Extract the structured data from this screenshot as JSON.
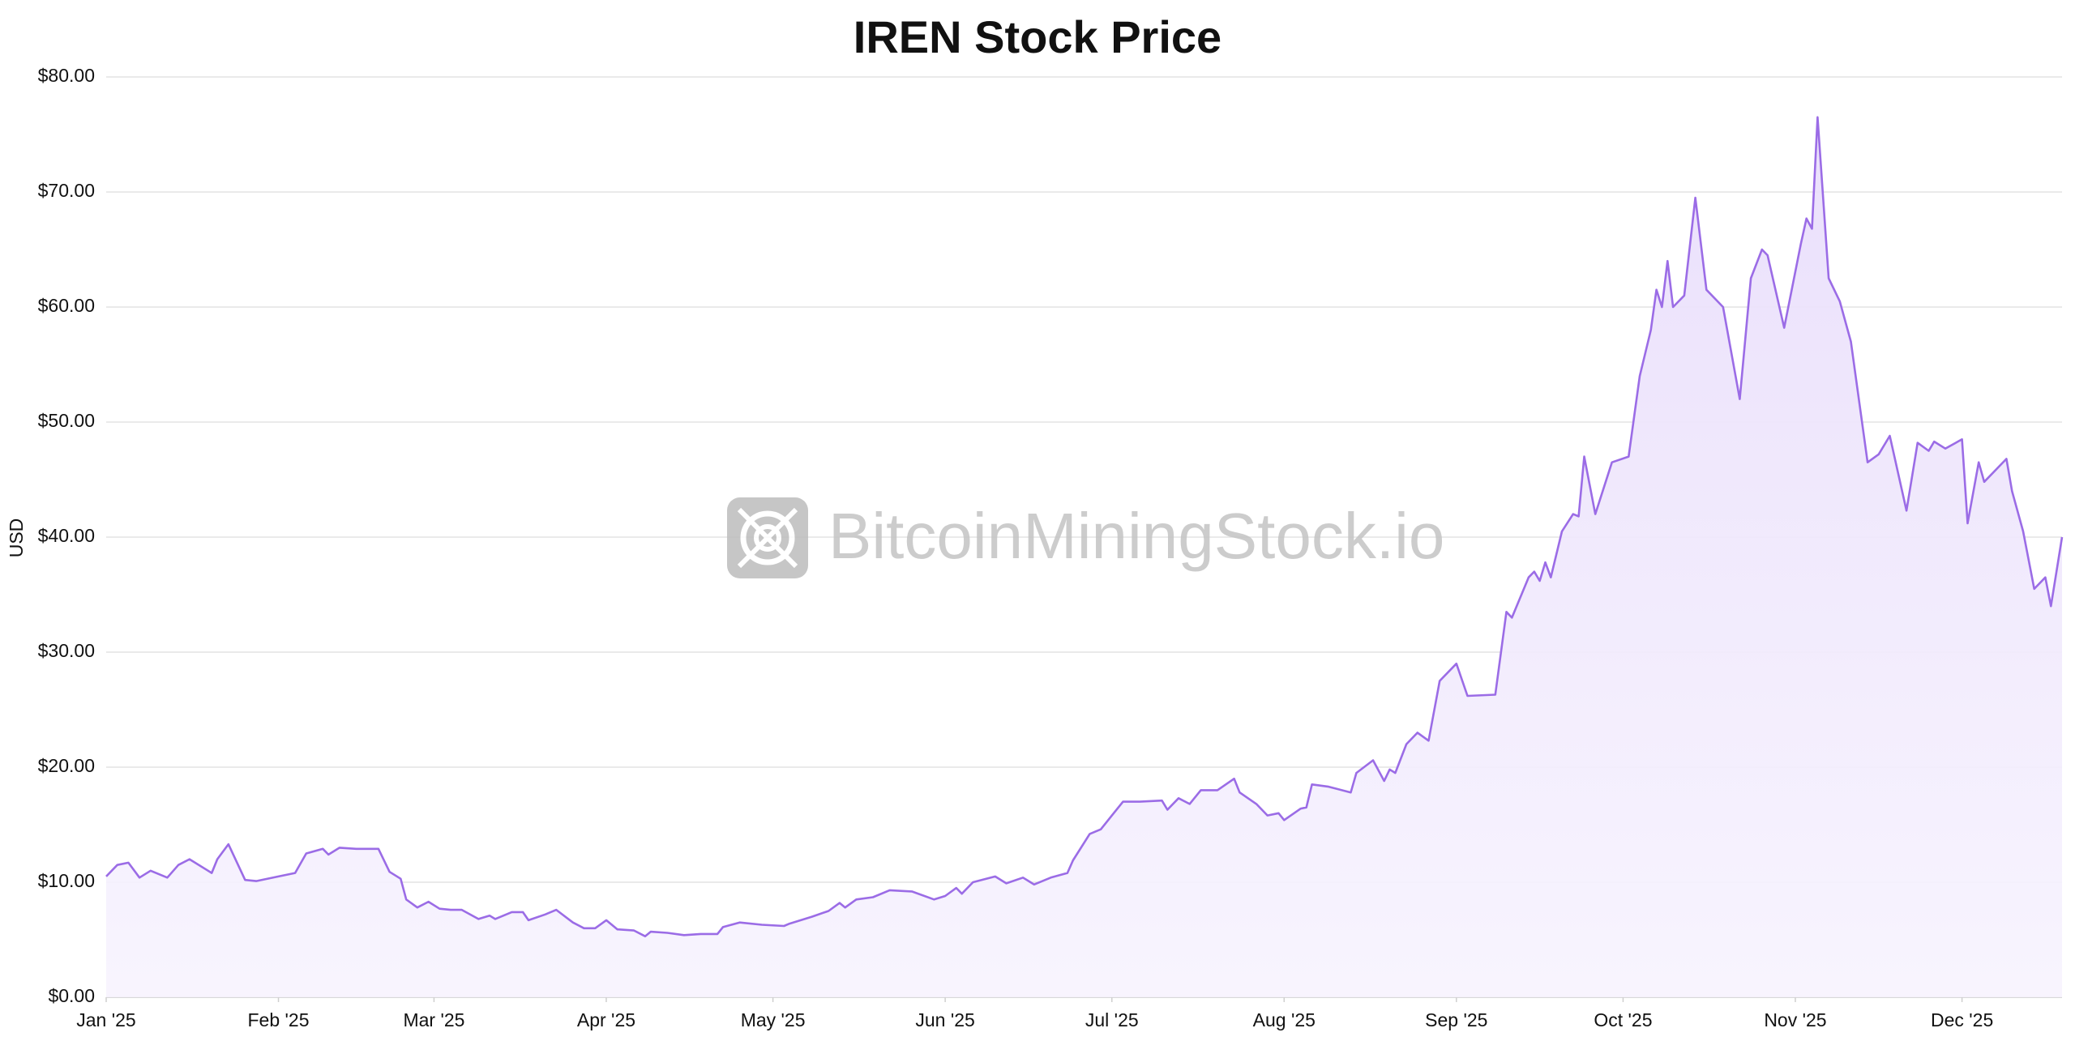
{
  "chart_data": {
    "type": "area",
    "title": "IREN Stock Price",
    "y_label": "USD",
    "watermark": "BitcoinMiningStock.io",
    "color": "#9b6ce6",
    "grid": true,
    "xlim": [
      0,
      352
    ],
    "ylim": [
      0,
      80
    ],
    "xticks": [
      {
        "value": 0,
        "label": "Jan '25"
      },
      {
        "value": 31,
        "label": "Feb '25"
      },
      {
        "value": 59,
        "label": "Mar '25"
      },
      {
        "value": 90,
        "label": "Apr '25"
      },
      {
        "value": 120,
        "label": "May '25"
      },
      {
        "value": 151,
        "label": "Jun '25"
      },
      {
        "value": 181,
        "label": "Jul '25"
      },
      {
        "value": 212,
        "label": "Aug '25"
      },
      {
        "value": 243,
        "label": "Sep '25"
      },
      {
        "value": 273,
        "label": "Oct '25"
      },
      {
        "value": 304,
        "label": "Nov '25"
      },
      {
        "value": 334,
        "label": "Dec '25"
      }
    ],
    "yticks": [
      {
        "value": 0,
        "label": "$0.00"
      },
      {
        "value": 10,
        "label": "$10.00"
      },
      {
        "value": 20,
        "label": "$20.00"
      },
      {
        "value": 30,
        "label": "$30.00"
      },
      {
        "value": 40,
        "label": "$40.00"
      },
      {
        "value": 50,
        "label": "$50.00"
      },
      {
        "value": 60,
        "label": "$60.00"
      },
      {
        "value": 70,
        "label": "$70.00"
      },
      {
        "value": 80,
        "label": "$80.00"
      }
    ],
    "x": [
      0,
      2,
      4,
      6,
      8,
      11,
      13,
      15,
      19,
      20,
      22,
      25,
      27,
      31,
      34,
      36,
      39,
      40,
      42,
      45,
      49,
      51,
      53,
      54,
      56,
      58,
      60,
      62,
      64,
      67,
      69,
      70,
      73,
      75,
      76,
      79,
      81,
      84,
      86,
      88,
      90,
      92,
      95,
      97,
      98,
      101,
      104,
      107,
      110,
      111,
      114,
      118,
      122,
      123,
      127,
      130,
      132,
      133,
      135,
      138,
      141,
      145,
      149,
      151,
      153,
      154,
      156,
      160,
      162,
      165,
      167,
      170,
      173,
      174,
      177,
      179,
      181,
      183,
      186,
      190,
      191,
      193,
      195,
      197,
      200,
      203,
      204,
      207,
      209,
      211,
      212,
      215,
      216,
      217,
      220,
      224,
      225,
      228,
      230,
      231,
      232,
      234,
      236,
      238,
      240,
      243,
      245,
      250,
      252,
      253,
      256,
      257,
      258,
      259,
      260,
      262,
      264,
      265,
      266,
      268,
      271,
      274,
      276,
      278,
      279,
      280,
      281,
      282,
      284,
      286,
      288,
      291,
      294,
      296,
      298,
      299,
      302,
      305,
      306,
      307,
      308,
      310,
      312,
      314,
      317,
      319,
      321,
      324,
      326,
      328,
      329,
      331,
      334,
      335,
      337,
      338,
      342,
      343,
      345,
      347,
      349,
      350,
      352
    ],
    "values": [
      10.5,
      11.5,
      11.7,
      10.4,
      11.0,
      10.4,
      11.5,
      12.0,
      10.8,
      12.0,
      13.3,
      10.2,
      10.1,
      10.5,
      10.8,
      12.5,
      12.9,
      12.4,
      13.0,
      12.9,
      12.9,
      10.9,
      10.3,
      8.5,
      7.8,
      8.3,
      7.7,
      7.6,
      7.6,
      6.8,
      7.1,
      6.8,
      7.4,
      7.4,
      6.7,
      7.2,
      7.6,
      6.5,
      6.0,
      6.0,
      6.7,
      5.9,
      5.8,
      5.3,
      5.7,
      5.6,
      5.4,
      5.5,
      5.5,
      6.1,
      6.5,
      6.3,
      6.2,
      6.4,
      7.0,
      7.5,
      8.2,
      7.8,
      8.5,
      8.7,
      9.3,
      9.2,
      8.5,
      8.8,
      9.5,
      9.0,
      10.0,
      10.5,
      9.9,
      10.4,
      9.8,
      10.4,
      10.8,
      11.9,
      14.2,
      14.6,
      15.8,
      17.0,
      17.0,
      17.1,
      16.3,
      17.3,
      16.8,
      18.0,
      18.0,
      19.0,
      17.8,
      16.8,
      15.8,
      16.0,
      15.4,
      16.4,
      16.5,
      18.5,
      18.3,
      17.8,
      19.5,
      20.6,
      18.8,
      19.8,
      19.5,
      22.0,
      23.0,
      22.3,
      27.5,
      29.0,
      26.2,
      26.3,
      33.5,
      33.0,
      36.5,
      37.0,
      36.2,
      37.8,
      36.5,
      40.5,
      42.0,
      41.8,
      47.0,
      42.0,
      46.5,
      47.0,
      54.0,
      58.0,
      61.5,
      60.0,
      64.0,
      60.0,
      61.0,
      69.5,
      61.5,
      60.0,
      52.0,
      62.5,
      65.0,
      64.5,
      58.2,
      65.5,
      67.7,
      66.8,
      76.5,
      62.5,
      60.5,
      57.0,
      46.5,
      47.2,
      48.8,
      42.3,
      48.2,
      47.5,
      48.3,
      47.7,
      48.5,
      41.2,
      46.5,
      44.8,
      46.8,
      44.0,
      40.5,
      35.5,
      36.5,
      34.0,
      40.0
    ]
  }
}
